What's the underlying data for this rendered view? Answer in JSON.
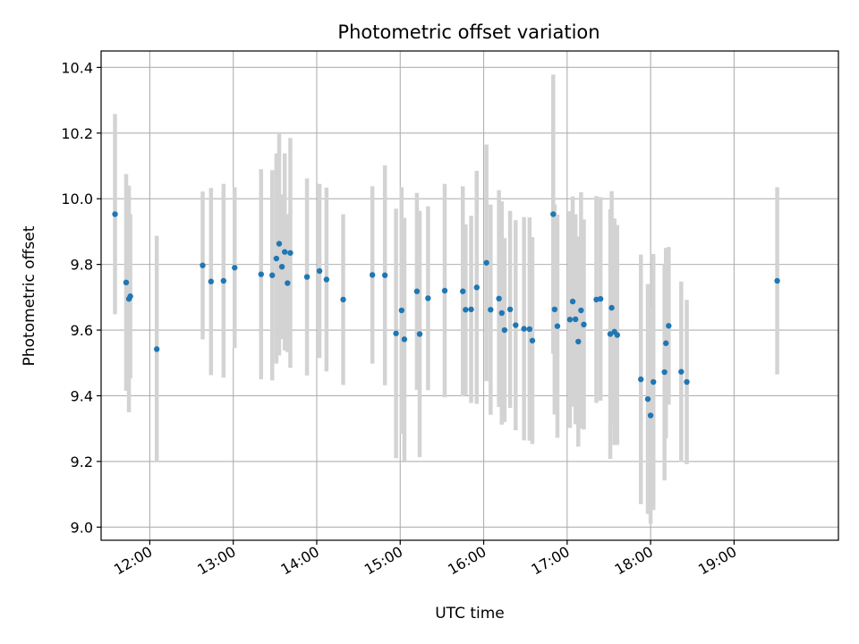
{
  "colors": {
    "point": "#1f77b4",
    "errorbar": "#d3d3d3",
    "grid": "#b0b0b0"
  },
  "chart_data": {
    "type": "scatter",
    "title": "Photometric offset variation",
    "xlabel": "UTC time",
    "ylabel": "Photometric offset",
    "xlim": [
      "11:25",
      "20:15"
    ],
    "ylim": [
      8.96,
      10.45
    ],
    "x_ticks": [
      "12:00",
      "13:00",
      "14:00",
      "15:00",
      "16:00",
      "17:00",
      "18:00",
      "19:00"
    ],
    "y_ticks": [
      "9.0",
      "9.2",
      "9.4",
      "9.6",
      "9.8",
      "10.0",
      "10.2",
      "10.4"
    ],
    "grid": true,
    "legend": "none",
    "series": [
      {
        "x": [
          "11:35",
          "11:43",
          "11:45",
          "11:46",
          "12:05",
          "12:38",
          "12:44",
          "12:53",
          "13:01",
          "13:20",
          "13:28",
          "13:31",
          "13:33",
          "13:35",
          "13:37",
          "13:39",
          "13:41",
          "13:53",
          "14:02",
          "14:07",
          "14:19",
          "14:40",
          "14:49",
          "14:57",
          "15:01",
          "15:03",
          "15:12",
          "15:14",
          "15:20",
          "15:32",
          "15:45",
          "15:47",
          "15:51",
          "15:55",
          "16:02",
          "16:05",
          "16:11",
          "16:13",
          "16:15",
          "16:19",
          "16:23",
          "16:29",
          "16:33",
          "16:35",
          "16:50",
          "16:51",
          "16:53",
          "17:02",
          "17:04",
          "17:06",
          "17:08",
          "17:10",
          "17:12",
          "17:21",
          "17:24",
          "17:31",
          "17:32",
          "17:34",
          "17:36",
          "17:53",
          "17:58",
          "18:00",
          "18:02",
          "18:10",
          "18:11",
          "18:13",
          "18:22",
          "18:26",
          "19:31"
        ],
        "y": [
          9.953,
          9.745,
          9.695,
          9.703,
          9.542,
          9.797,
          9.748,
          9.75,
          9.79,
          9.77,
          9.767,
          9.818,
          9.863,
          9.793,
          9.838,
          9.743,
          9.835,
          9.762,
          9.78,
          9.754,
          9.693,
          9.768,
          9.767,
          9.59,
          9.66,
          9.572,
          9.718,
          9.588,
          9.697,
          9.72,
          9.718,
          9.662,
          9.663,
          9.73,
          9.805,
          9.662,
          9.696,
          9.652,
          9.6,
          9.663,
          9.615,
          9.604,
          9.603,
          9.568,
          9.953,
          9.663,
          9.612,
          9.632,
          9.687,
          9.633,
          9.565,
          9.66,
          9.617,
          9.693,
          9.695,
          9.588,
          9.668,
          9.595,
          9.585,
          9.45,
          9.39,
          9.34,
          9.442,
          9.472,
          9.56,
          9.613,
          9.473,
          9.442,
          9.75
        ],
        "yerr": [
          0.305,
          0.33,
          0.345,
          0.25,
          0.345,
          0.225,
          0.285,
          0.295,
          0.245,
          0.32,
          0.32,
          0.32,
          0.34,
          0.22,
          0.3,
          0.21,
          0.35,
          0.3,
          0.265,
          0.28,
          0.26,
          0.27,
          0.335,
          0.38,
          0.375,
          0.37,
          0.3,
          0.375,
          0.28,
          0.325,
          0.32,
          0.26,
          0.285,
          0.355,
          0.36,
          0.32,
          0.33,
          0.34,
          0.28,
          0.3,
          0.32,
          0.34,
          0.34,
          0.315,
          0.425,
          0.32,
          0.34,
          0.33,
          0.32,
          0.32,
          0.32,
          0.36,
          0.32,
          0.315,
          0.31,
          0.38,
          0.355,
          0.345,
          0.335,
          0.38,
          0.35,
          0.33,
          0.39,
          0.33,
          0.29,
          0.24,
          0.275,
          0.25,
          0.285
        ]
      }
    ]
  }
}
